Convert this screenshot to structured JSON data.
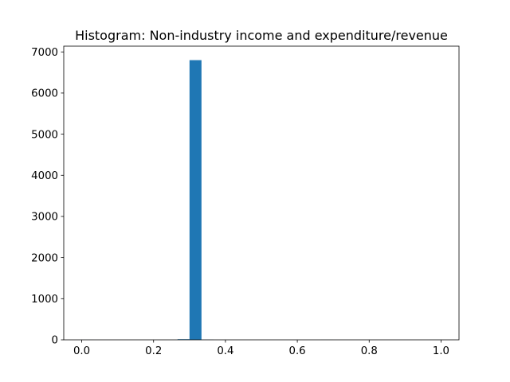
{
  "chart_data": {
    "type": "bar",
    "title": "Histogram:  Non-industry income and expenditure/revenue",
    "xlabel": "",
    "ylabel": "",
    "xlim": [
      -0.05,
      1.05
    ],
    "ylim": [
      0,
      7140
    ],
    "xticks": [
      0.0,
      0.2,
      0.4,
      0.6,
      0.8,
      1.0
    ],
    "xtick_labels": [
      "0.0",
      "0.2",
      "0.4",
      "0.6",
      "0.8",
      "1.0"
    ],
    "yticks": [
      0,
      1000,
      2000,
      3000,
      4000,
      5000,
      6000,
      7000
    ],
    "ytick_labels": [
      "0",
      "1000",
      "2000",
      "3000",
      "4000",
      "5000",
      "6000",
      "7000"
    ],
    "grid": false,
    "legend": false,
    "bar_color": "#1f77b4",
    "bins": [
      {
        "x0": 0.0,
        "x1": 0.0333,
        "count": 1
      },
      {
        "x0": 0.2667,
        "x1": 0.3,
        "count": 15
      },
      {
        "x0": 0.3,
        "x1": 0.3333,
        "count": 6800
      },
      {
        "x0": 0.3333,
        "x1": 0.3667,
        "count": 3
      },
      {
        "x0": 0.6667,
        "x1": 0.7,
        "count": 1
      },
      {
        "x0": 0.9667,
        "x1": 1.0,
        "count": 1
      }
    ]
  }
}
